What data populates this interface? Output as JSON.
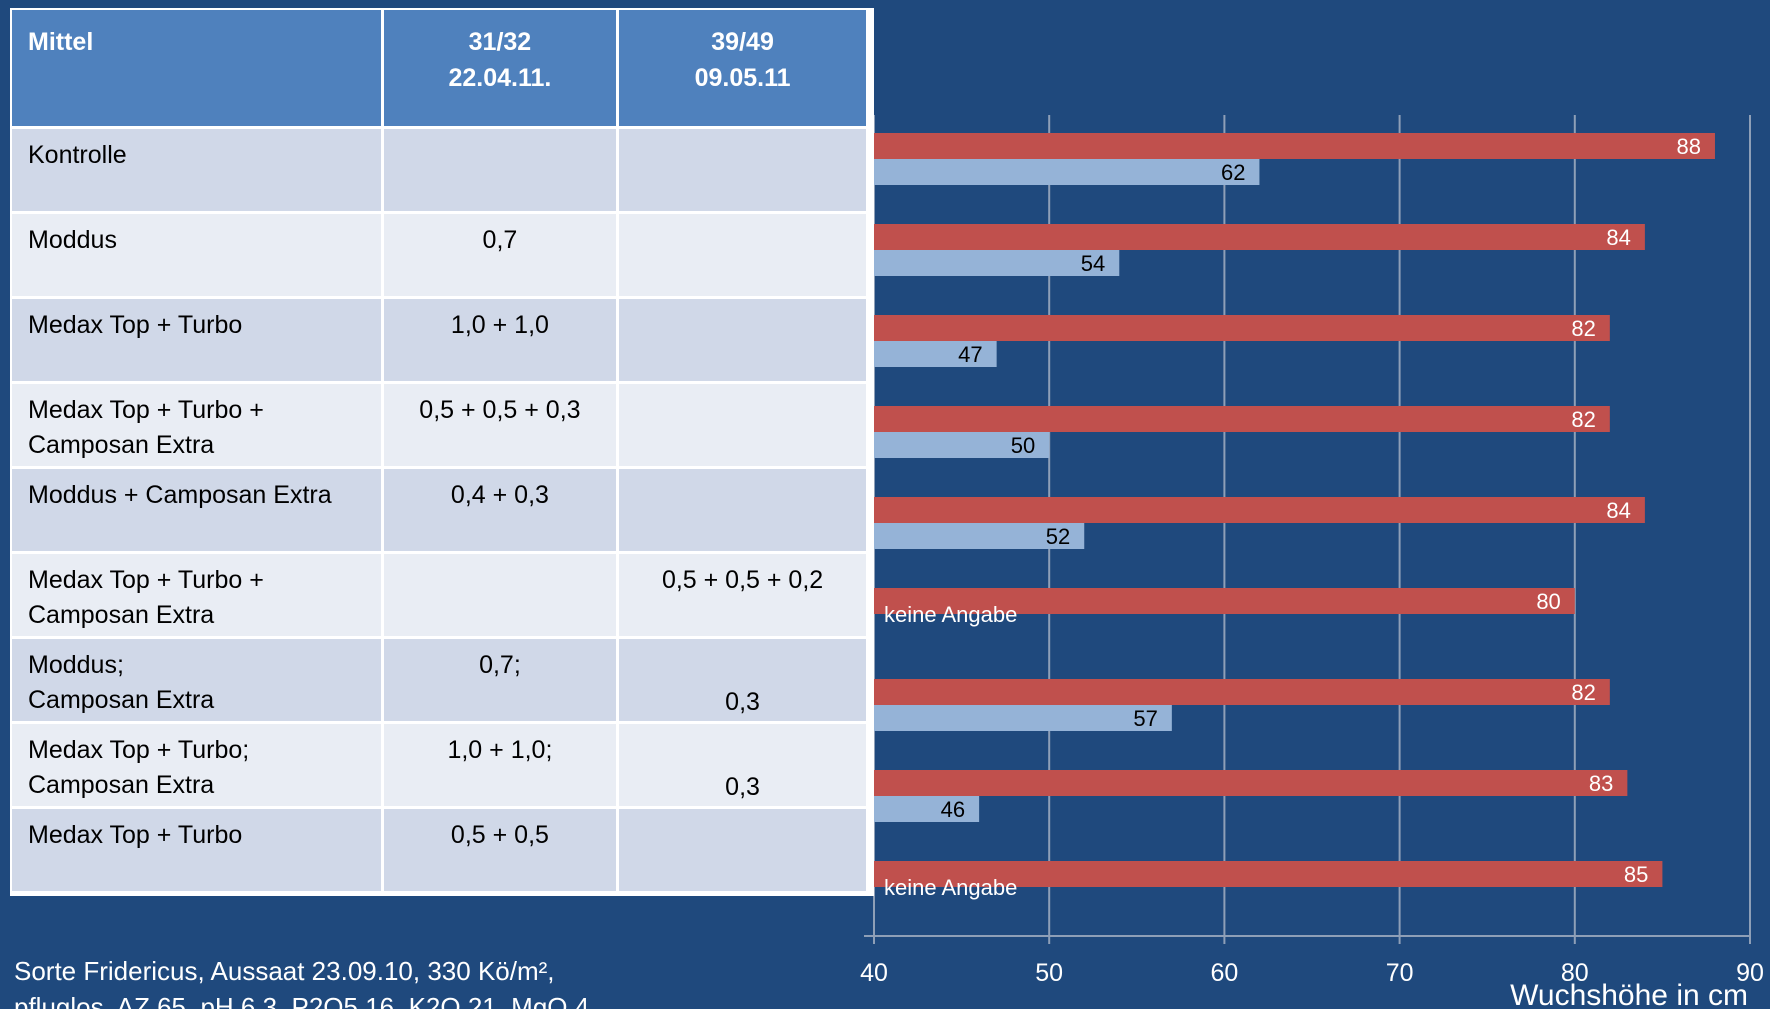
{
  "table": {
    "headers": [
      {
        "lines": [
          "Mittel"
        ]
      },
      {
        "lines": [
          "31/32",
          "22.04.11."
        ]
      },
      {
        "lines": [
          "39/49",
          "09.05.11"
        ]
      }
    ],
    "rows": [
      {
        "name": [
          "Kontrolle"
        ],
        "c1": "",
        "c2": ""
      },
      {
        "name": [
          "Moddus"
        ],
        "c1": "0,7",
        "c2": ""
      },
      {
        "name": [
          "Medax Top + Turbo"
        ],
        "c1": "1,0 + 1,0",
        "c2": ""
      },
      {
        "name": [
          "Medax Top + Turbo +",
          "Camposan Extra"
        ],
        "c1": "0,5 + 0,5 + 0,3",
        "c2": ""
      },
      {
        "name": [
          "Moddus + Camposan Extra"
        ],
        "c1": "0,4 + 0,3",
        "c2": ""
      },
      {
        "name": [
          "Medax Top + Turbo +",
          "Camposan Extra"
        ],
        "c1": "",
        "c2": "0,5 + 0,5 + 0,2"
      },
      {
        "name": [
          "Moddus;",
          "Camposan Extra"
        ],
        "c1": "0,7;",
        "c2": "0,3"
      },
      {
        "name": [
          "Medax Top + Turbo;",
          "Camposan Extra"
        ],
        "c1": "1,0 + 1,0;",
        "c2": "0,3"
      },
      {
        "name": [
          "Medax Top + Turbo"
        ],
        "c1": "0,5 + 0,5",
        "c2": ""
      }
    ]
  },
  "footnote": {
    "lines": [
      "Sorte Fridericus, Aussaat 23.09.10, 330 Kö/m²,",
      "pfluglos, AZ 65, pH 6,3, P2O5 16, K2O 21, MgO 4"
    ]
  },
  "colors": {
    "background": "#1f497d",
    "series_red": "#c0504d",
    "series_blue": "#95b3d7",
    "gridline": "#8e9fb7"
  },
  "chart_data": {
    "type": "bar",
    "orientation": "horizontal",
    "xlabel": "Wuchshöhe in cm",
    "xlim": [
      40,
      90
    ],
    "xticks": [
      40,
      50,
      60,
      70,
      80,
      90
    ],
    "grid": true,
    "series": [
      {
        "color": "#c0504d",
        "values": [
          88,
          84,
          82,
          82,
          84,
          80,
          82,
          83,
          85
        ]
      },
      {
        "color": "#95b3d7",
        "values": [
          62,
          54,
          47,
          50,
          52,
          null,
          57,
          46,
          null
        ]
      }
    ],
    "missing_label": "keine Angabe"
  }
}
